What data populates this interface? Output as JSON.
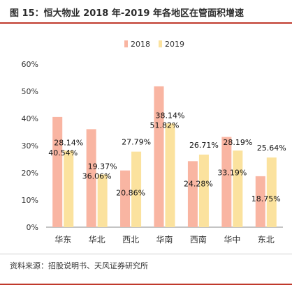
{
  "title": "图 15：恒大物业 2018 年-2019 年各地区在管面积增速",
  "source": "资料来源：招股说明书、天风证券研究所",
  "colors": {
    "series_2018": "#f9b5a2",
    "series_2019": "#fbe29e",
    "accent": "#c0392b"
  },
  "chart_data": {
    "type": "bar",
    "categories": [
      "华东",
      "华北",
      "西北",
      "华南",
      "西南",
      "华中",
      "东北"
    ],
    "series": [
      {
        "name": "2018",
        "values": [
          40.54,
          36.06,
          20.86,
          51.82,
          24.28,
          33.19,
          18.75
        ],
        "labels": [
          "40.54%",
          "36.06%",
          "20.86%",
          "51.82%",
          "24.28%",
          "33.19%",
          "18.75%"
        ]
      },
      {
        "name": "2019",
        "values": [
          28.14,
          19.37,
          27.79,
          38.14,
          26.71,
          28.19,
          25.64
        ],
        "labels": [
          "28.14%",
          "19.37%",
          "27.79%",
          "38.14%",
          "26.71%",
          "28.19%",
          "25.64%"
        ]
      }
    ],
    "ylim": [
      0,
      60
    ],
    "yticks": [
      "0%",
      "10%",
      "20%",
      "30%",
      "40%",
      "50%",
      "60%"
    ],
    "legend": "top-center",
    "grid": false
  }
}
